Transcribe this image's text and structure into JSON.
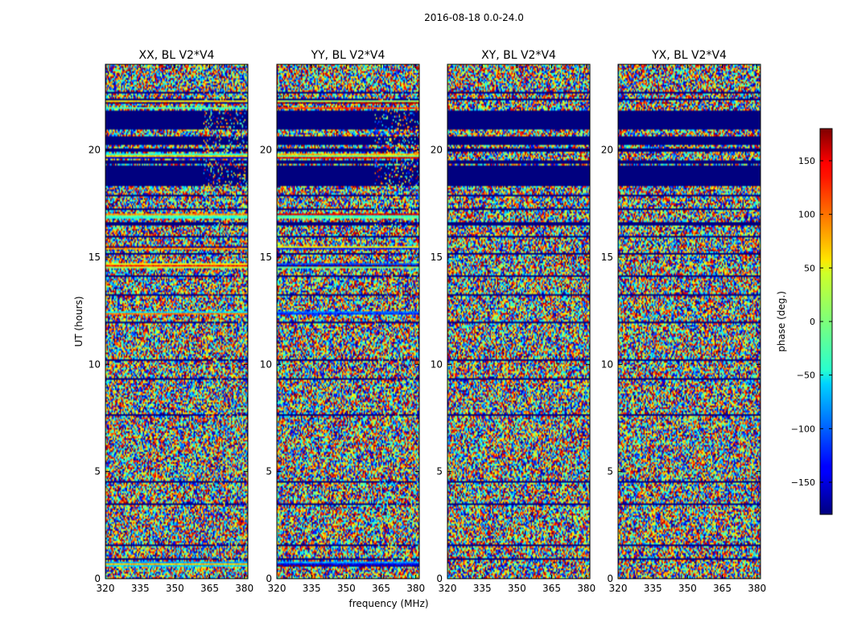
{
  "figure_title": "2016-08-18 0.0-24.0",
  "chart_data": {
    "type": "heatmap",
    "suptitle": "2016-08-18 0.0-24.0",
    "ylabel": "UT (hours)",
    "xlabel": "frequency (MHz)",
    "xlim": [
      320,
      381.5
    ],
    "ylim": [
      0,
      24
    ],
    "x_ticks": [
      320,
      335,
      350,
      365,
      380
    ],
    "y_ticks": [
      0,
      5,
      10,
      15,
      20
    ],
    "panels": [
      {
        "title": "XX, BL V2*V4"
      },
      {
        "title": "YY, BL V2*V4"
      },
      {
        "title": "XY, BL V2*V4"
      },
      {
        "title": "YX, BL V2*V4"
      }
    ],
    "colorbar": {
      "label": "phase (deg.)",
      "range": [
        -180,
        180
      ],
      "ticks": [
        -150,
        -100,
        -50,
        0,
        50,
        100,
        150
      ],
      "tick_labels": [
        "−150",
        "−100",
        "−50",
        "0",
        "50",
        "100",
        "150"
      ],
      "colormap": "jet"
    },
    "flagged_color": "#00007f",
    "flagged_bands_ut": [
      [
        0.85,
        0.95
      ],
      [
        1.55,
        1.6
      ],
      [
        2.05,
        2.1
      ],
      [
        3.45,
        3.5
      ],
      [
        4.5,
        4.55
      ],
      [
        5.25,
        5.3
      ],
      [
        6.05,
        6.1
      ],
      [
        7.25,
        7.3
      ],
      [
        7.6,
        7.7
      ],
      [
        8.45,
        8.5
      ],
      [
        9.3,
        9.35
      ],
      [
        10.2,
        10.25
      ],
      [
        11.1,
        11.15
      ],
      [
        11.95,
        12.0
      ],
      [
        13.2,
        13.25
      ],
      [
        14.1,
        14.15
      ],
      [
        15.1,
        15.2
      ],
      [
        15.9,
        16.0
      ],
      [
        16.5,
        16.6
      ],
      [
        17.2,
        17.3
      ],
      [
        17.85,
        17.95
      ],
      [
        18.35,
        19.3
      ],
      [
        19.35,
        19.5
      ],
      [
        19.9,
        20.05
      ],
      [
        20.25,
        20.65
      ],
      [
        20.95,
        21.85
      ],
      [
        22.05,
        22.1
      ],
      [
        22.35,
        22.4
      ],
      [
        22.65,
        22.7
      ]
    ],
    "smooth_bands_ut": [
      [
        0.6,
        0.8
      ],
      [
        12.3,
        12.5
      ],
      [
        14.5,
        14.7
      ],
      [
        15.4,
        15.5
      ],
      [
        16.8,
        17.0
      ],
      [
        19.6,
        19.8
      ],
      [
        21.9,
        22.0
      ],
      [
        22.2,
        22.3
      ]
    ]
  }
}
